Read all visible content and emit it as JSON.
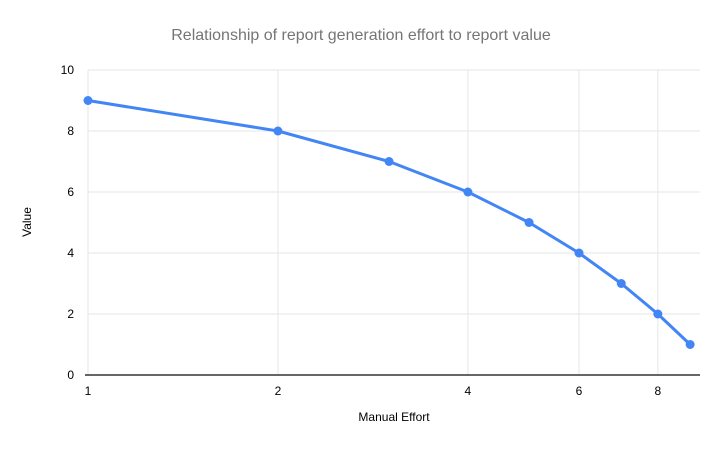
{
  "chart_data": {
    "type": "line",
    "title": "Relationship of report generation effort to report value",
    "xlabel": "Manual Effort",
    "ylabel": "Value",
    "x": [
      1,
      2,
      3,
      4,
      5,
      6,
      7,
      8,
      9
    ],
    "values": [
      9,
      8,
      7,
      6,
      5,
      4,
      3,
      2,
      1
    ],
    "series": [
      {
        "name": "Value",
        "values": [
          9,
          8,
          7,
          6,
          5,
          4,
          3,
          2,
          1
        ]
      }
    ],
    "x_axis": {
      "scale": "log",
      "min": 1,
      "max": 9.33,
      "ticks": [
        1,
        2,
        4,
        6,
        8
      ]
    },
    "y_axis": {
      "scale": "linear",
      "min": 0,
      "max": 10,
      "ticks": [
        0,
        2,
        4,
        6,
        8,
        10
      ]
    },
    "grid": "on",
    "legend": "none",
    "colors": {
      "accent": "#4285f4",
      "gridline": "#e6e6e6",
      "axis_line": "#333333",
      "title_text": "#757575",
      "label_text": "#000000"
    }
  }
}
